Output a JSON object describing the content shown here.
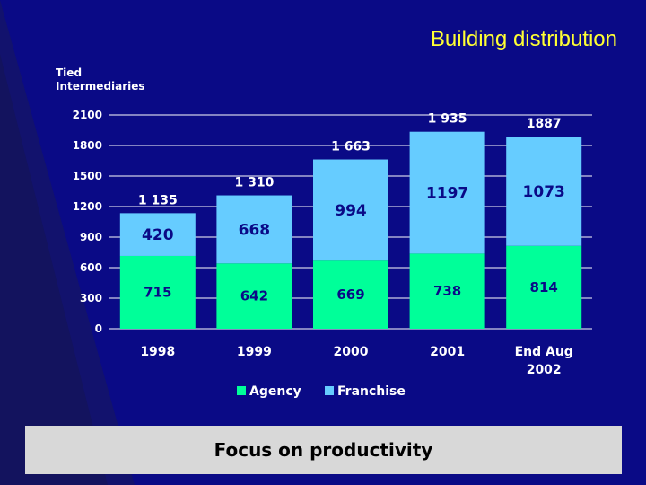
{
  "slide": {
    "title": "Building distribution",
    "footer": "Focus on productivity"
  },
  "colors": {
    "background": "#0a0a86",
    "title": "#ffff33",
    "agency": "#00ff99",
    "franchise": "#66ccff",
    "text": "#ffffff",
    "footer_bg": "#d8d8d8"
  },
  "chart_data": {
    "type": "bar",
    "stacked": true,
    "ylabel": "Tied\nIntermediaries",
    "ylim": [
      0,
      2100
    ],
    "yticks": [
      0,
      300,
      600,
      900,
      1200,
      1500,
      1800,
      2100
    ],
    "ytick_labels": [
      "0",
      "300",
      "600",
      "900",
      "1200",
      "1500",
      "1800",
      "2100"
    ],
    "categories": [
      "1998",
      "1999",
      "2000",
      "2001",
      "End Aug\n2002"
    ],
    "series": [
      {
        "name": "Agency",
        "color": "#00ff99",
        "values": [
          715,
          642,
          669,
          738,
          814
        ],
        "labels": [
          "715",
          "642",
          "669",
          "738",
          "814"
        ]
      },
      {
        "name": "Franchise",
        "color": "#66ccff",
        "values": [
          420,
          668,
          994,
          1197,
          1073
        ],
        "labels": [
          "420",
          "668",
          "994",
          "1197",
          "1073"
        ]
      }
    ],
    "totals": [
      1135,
      1310,
      1663,
      1935,
      1887
    ],
    "total_labels": [
      "1 135",
      "1 310",
      "1 663",
      "1 935",
      "1887"
    ],
    "grid": "horizontal",
    "legend": "bottom-center"
  }
}
